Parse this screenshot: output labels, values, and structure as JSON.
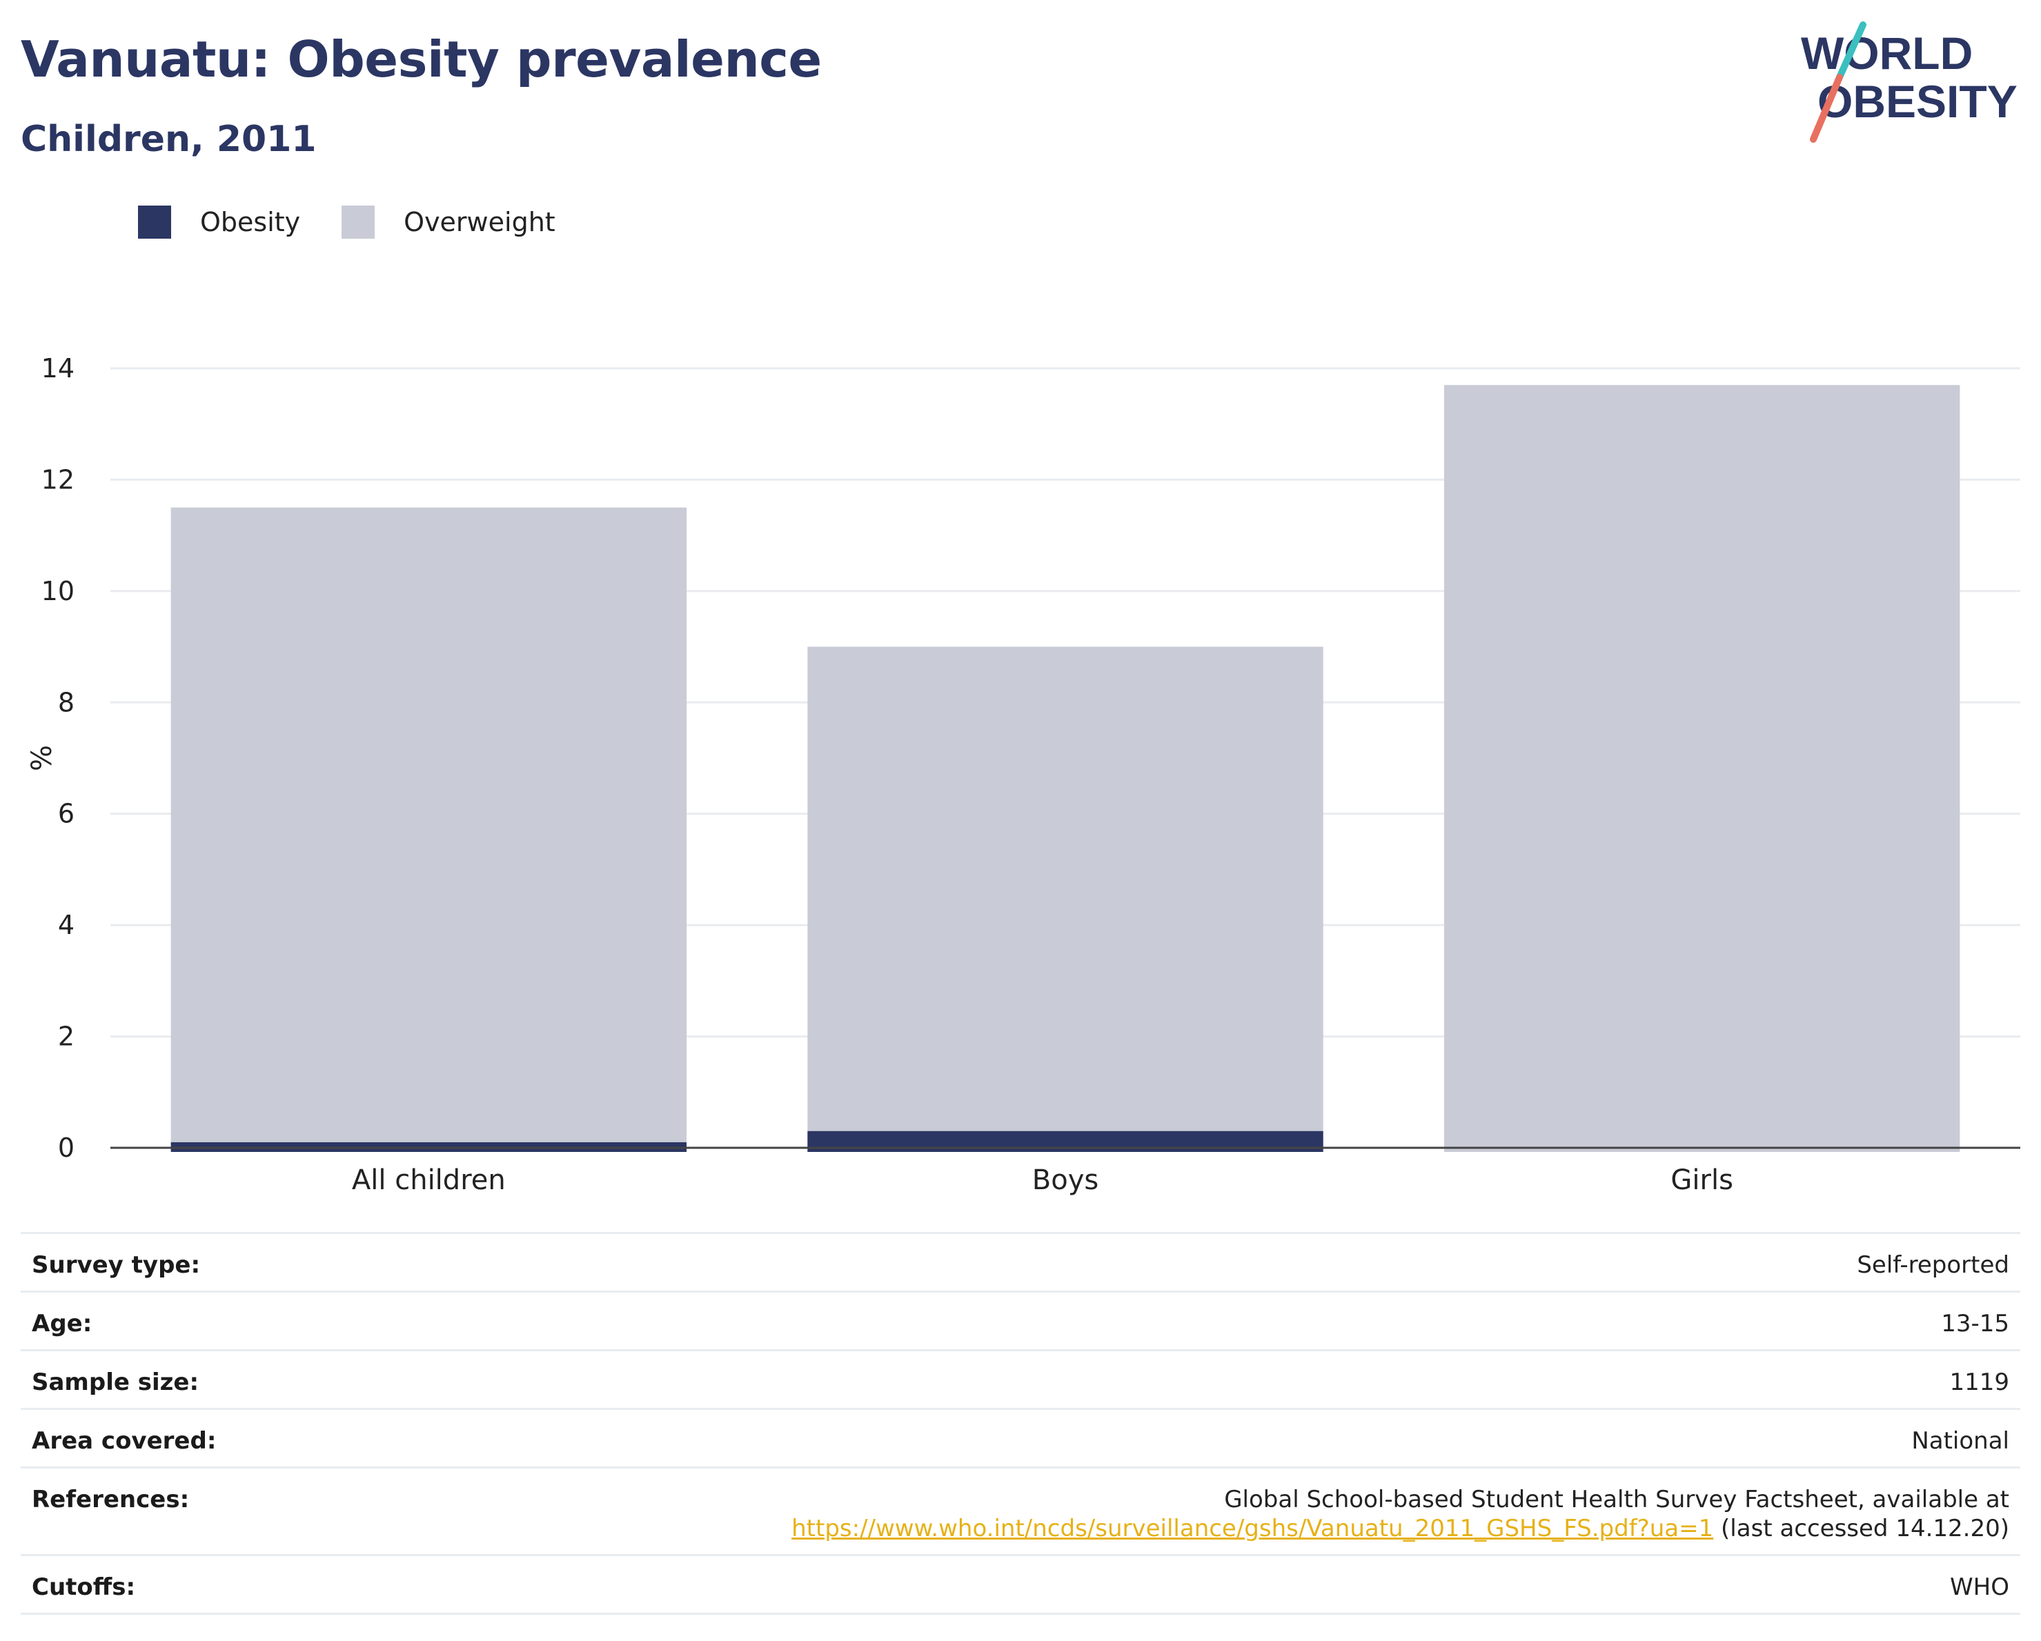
{
  "header": {
    "title": "Vanuatu: Obesity prevalence",
    "subtitle": "Children, 2011"
  },
  "logo": {
    "line1": "WORLD",
    "line2": "OBESITY",
    "colors": {
      "text": "#2b3663",
      "slash_top": "#3bbfbf",
      "slash_bottom": "#e8705f"
    }
  },
  "legend": [
    {
      "label": "Obesity",
      "color": "#2b3663"
    },
    {
      "label": "Overweight",
      "color": "#c9cbd6"
    }
  ],
  "chart_data": {
    "type": "bar",
    "stacked": true,
    "categories": [
      "All children",
      "Boys",
      "Girls"
    ],
    "series": [
      {
        "name": "Obesity",
        "values": [
          0.1,
          0.3,
          0
        ],
        "color": "#2b3663"
      },
      {
        "name": "Overweight",
        "values": [
          11.4,
          8.7,
          13.7
        ],
        "color": "#c9cbd6"
      }
    ],
    "ylabel": "%",
    "xlabel": "",
    "ylim": [
      0,
      14
    ],
    "yticks": [
      "0",
      "2",
      "4",
      "6",
      "8",
      "10",
      "12",
      "14"
    ],
    "grid": true,
    "legend_position": "top-left"
  },
  "info": {
    "survey_type": {
      "label": "Survey type:",
      "value": "Self-reported"
    },
    "age": {
      "label": "Age:",
      "value": "13-15"
    },
    "sample_size": {
      "label": "Sample size:",
      "value": "1119"
    },
    "area": {
      "label": "Area covered:",
      "value": "National"
    },
    "references": {
      "label": "References:",
      "text": "Global School-based Student Health Survey Factsheet, available at",
      "link": "https://www.who.int/ncds/surveillance/gshs/Vanuatu_2011_GSHS_FS.pdf?ua=1",
      "suffix": "(last accessed 14.12.20)"
    },
    "cutoffs": {
      "label": "Cutoffs:",
      "value": "WHO"
    }
  }
}
